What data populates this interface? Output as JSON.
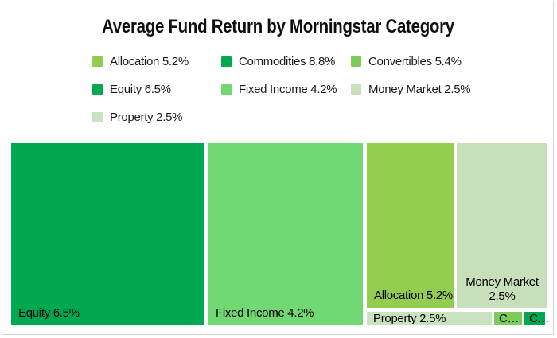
{
  "title": "Average Fund Return by Morningstar Category",
  "legend": {
    "items": [
      {
        "label": "Allocation 5.2%",
        "color": "#92cd50"
      },
      {
        "label": "Commodities 8.8%",
        "color": "#00a852"
      },
      {
        "label": "Convertibles 5.4%",
        "color": "#7ccb5b"
      },
      {
        "label": "Equity 6.5%",
        "color": "#00a852"
      },
      {
        "label": "Fixed Income 4.2%",
        "color": "#71d874"
      },
      {
        "label": "Money Market 2.5%",
        "color": "#c7dfbb"
      },
      {
        "label": "Property 2.5%",
        "color": "#cbe2c0"
      }
    ]
  },
  "treemap": {
    "tiles": [
      {
        "name": "Equity",
        "label": "Equity 6.5%",
        "color": "#00a852"
      },
      {
        "name": "Fixed Income",
        "label": "Fixed Income 4.2%",
        "color": "#71d874"
      },
      {
        "name": "Allocation",
        "label": "Allocation 5.2%",
        "color": "#92cd50"
      },
      {
        "name": "Money Market",
        "label": "Money Market 2.5%",
        "color": "#c7dfbb"
      },
      {
        "name": "Property",
        "label": "Property 2.5%",
        "color": "#cbe2c0"
      },
      {
        "name": "Convertibles",
        "label": "C…",
        "color": "#7ccb5b"
      },
      {
        "name": "Commodities",
        "label": "C…",
        "color": "#00a852"
      }
    ]
  },
  "chart_data": {
    "type": "treemap",
    "title": "Average Fund Return by Morningstar Category",
    "legend_position": "top",
    "series": [
      {
        "name": "Allocation",
        "avg_return_pct": 5.2,
        "tile_area_fraction": 0.148,
        "color": "#92cd50"
      },
      {
        "name": "Commodities",
        "avg_return_pct": 8.8,
        "tile_area_fraction": 0.003,
        "color": "#00a852"
      },
      {
        "name": "Convertibles",
        "avg_return_pct": 5.4,
        "tile_area_fraction": 0.004,
        "color": "#7ccb5b"
      },
      {
        "name": "Equity",
        "avg_return_pct": 6.5,
        "tile_area_fraction": 0.359,
        "color": "#00a852"
      },
      {
        "name": "Fixed Income",
        "avg_return_pct": 4.2,
        "tile_area_fraction": 0.288,
        "color": "#71d874"
      },
      {
        "name": "Money Market",
        "avg_return_pct": 2.5,
        "tile_area_fraction": 0.153,
        "color": "#c7dfbb"
      },
      {
        "name": "Property",
        "avg_return_pct": 2.5,
        "tile_area_fraction": 0.017,
        "color": "#cbe2c0"
      }
    ]
  }
}
